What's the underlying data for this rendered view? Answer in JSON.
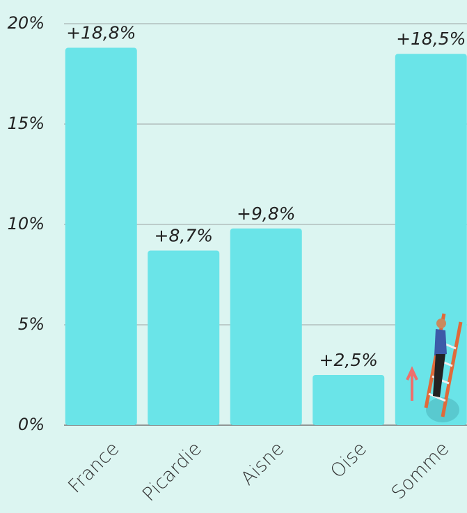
{
  "chart_data": {
    "type": "bar",
    "categories": [
      "France",
      "Picardie",
      "Aisne",
      "Oise",
      "Somme"
    ],
    "values": [
      18.8,
      8.7,
      9.8,
      2.5,
      18.5
    ],
    "value_labels": [
      "+18,8%",
      "+8,7%",
      "+9,8%",
      "+2,5%",
      "+18,5%"
    ],
    "color": "#6ae4e8",
    "ylim": [
      0,
      20
    ],
    "yticks": [
      {
        "value": 0,
        "label": "0%"
      },
      {
        "value": 5,
        "label": "5%"
      },
      {
        "value": 10,
        "label": "10%"
      },
      {
        "value": 15,
        "label": "15%"
      },
      {
        "value": 20,
        "label": "20%"
      }
    ],
    "grid": true
  }
}
